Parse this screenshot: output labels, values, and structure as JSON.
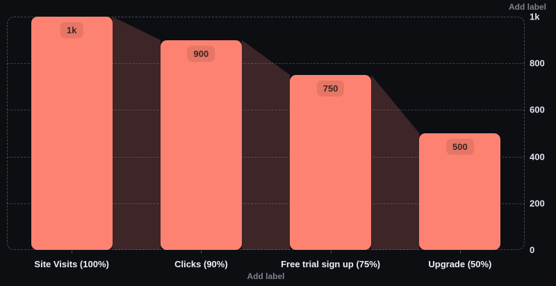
{
  "labels": {
    "add_label_right": "Add label",
    "add_label_bottom": "Add label"
  },
  "colors": {
    "background": "#0c0e12",
    "bar": "#fd8271",
    "connector": "#3e2527",
    "badge_bg": "rgba(0,0,0,0.09)",
    "badge_text": "#3a2621",
    "grid": "rgba(150,155,168,0.4)",
    "axis_text": "#e3e7f0",
    "muted_text": "#7d828b"
  },
  "chart_data": {
    "type": "bar",
    "subtype": "funnel",
    "title": "",
    "xlabel": "",
    "ylabel": "",
    "categories": [
      "Site Visits (100%)",
      "Clicks (90%)",
      "Free trial sign up (75%)",
      "Upgrade (50%)"
    ],
    "values": [
      1000,
      900,
      750,
      500
    ],
    "value_labels": [
      "1k",
      "900",
      "750",
      "500"
    ],
    "ylim": [
      0,
      1000
    ],
    "yticks": [
      {
        "value": 1000,
        "label": "1k"
      },
      {
        "value": 800,
        "label": "800"
      },
      {
        "value": 600,
        "label": "600"
      },
      {
        "value": 400,
        "label": "400"
      },
      {
        "value": 200,
        "label": "200"
      },
      {
        "value": 0,
        "label": "0"
      }
    ],
    "grid": "dashed-horizontal",
    "legend": false,
    "y_axis_position": "right"
  }
}
